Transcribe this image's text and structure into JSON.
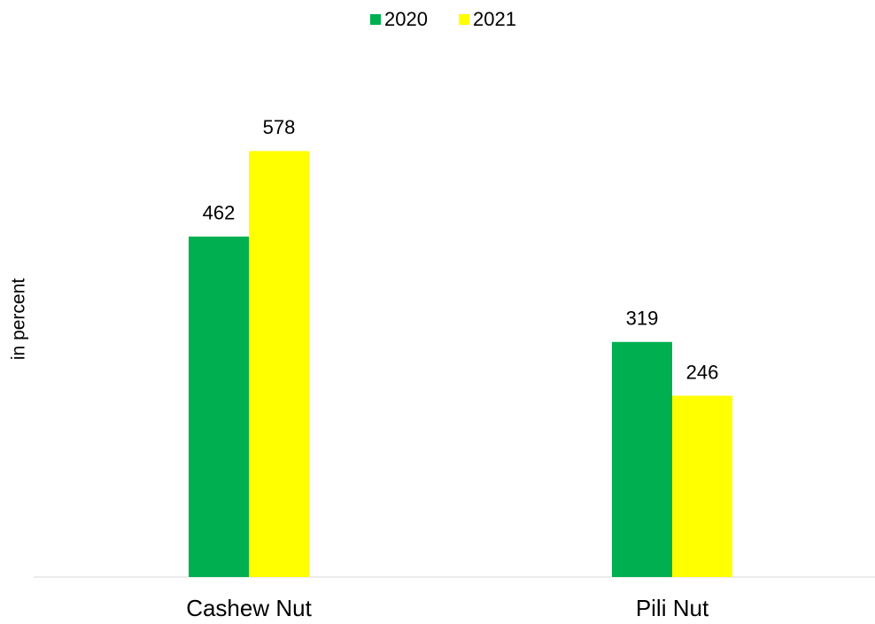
{
  "chart_data": {
    "type": "bar",
    "y_label": "in percent",
    "categories": [
      "Cashew Nut",
      "Pili Nut"
    ],
    "series": [
      {
        "name": "2020",
        "color": "#00b050",
        "values": [
          462,
          319
        ]
      },
      {
        "name": "2021",
        "color": "#ffff00",
        "values": [
          578,
          246
        ]
      }
    ],
    "ylim": [
      0,
      700
    ],
    "legend": "top"
  }
}
